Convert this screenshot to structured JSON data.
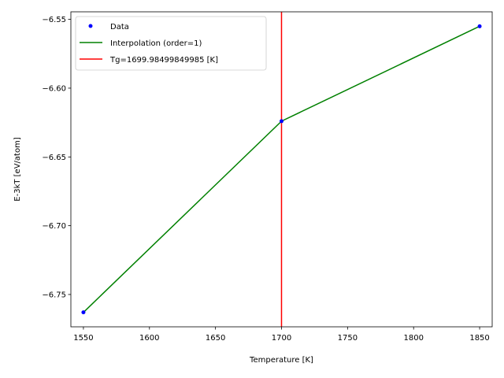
{
  "chart_data": {
    "type": "line",
    "title": "",
    "xlabel": "Temperature [K]",
    "ylabel": "E-3kT [eV/atom]",
    "xlim": [
      1540.5,
      1859.5
    ],
    "ylim": [
      -6.7735,
      -6.5445
    ],
    "xticks": [
      1550,
      1600,
      1650,
      1700,
      1750,
      1800,
      1850
    ],
    "xtick_labels": [
      "1550",
      "1600",
      "1650",
      "1700",
      "1750",
      "1800",
      "1850"
    ],
    "yticks": [
      -6.75,
      -6.7,
      -6.65,
      -6.6,
      -6.55
    ],
    "ytick_labels": [
      "−6.75",
      "−6.70",
      "−6.65",
      "−6.60",
      "−6.55"
    ],
    "grid": false,
    "legend_position": "top-left",
    "series": [
      {
        "name": "Data",
        "kind": "scatter",
        "color": "#0000ff",
        "x": [
          1550,
          1700,
          1850
        ],
        "y": [
          -6.763,
          -6.624,
          -6.555
        ]
      },
      {
        "name": "Interpolation (order=1)",
        "kind": "line",
        "color": "#008000",
        "x": [
          1550,
          1700,
          1850
        ],
        "y": [
          -6.763,
          -6.624,
          -6.555
        ]
      },
      {
        "name": "Tg=1699.98499849985 [K]",
        "kind": "vline",
        "color": "#ff0000",
        "x": 1699.985
      }
    ]
  }
}
